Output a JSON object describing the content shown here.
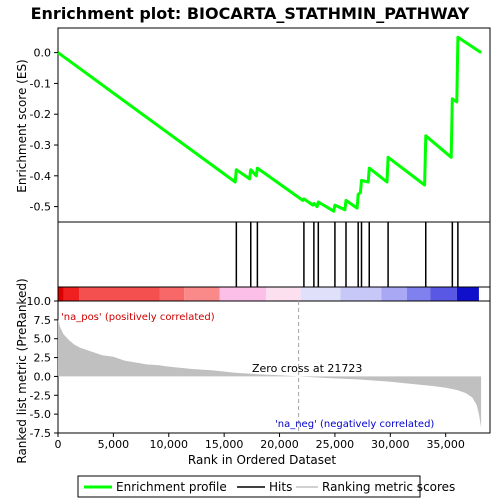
{
  "chart_data": {
    "type": "line",
    "title": "Enrichment plot: BIOCARTA_STATHMIN_PATHWAY",
    "xlabel": "Rank in Ordered Dataset",
    "colors": {
      "es_line": "#00ff00",
      "hits": "#000000",
      "metric_fill": "#c0c0c0",
      "zero_cross_line": "#a0a0a0",
      "pos_label": "#cc0000",
      "neg_label": "#0000cc"
    },
    "panels": {
      "enrichment": {
        "ylabel": "Enrichment score (ES)",
        "ylim": [
          -0.55,
          0.08
        ],
        "yticks": [
          {
            "v": 0.0,
            "label": "0.0"
          },
          {
            "v": -0.1,
            "label": "-0.1"
          },
          {
            "v": -0.2,
            "label": "-0.2"
          },
          {
            "v": -0.3,
            "label": "-0.3"
          },
          {
            "v": -0.4,
            "label": "-0.4"
          },
          {
            "v": -0.5,
            "label": "-0.5"
          }
        ],
        "es_curve": {
          "x": [
            0,
            16000,
            16100,
            17300,
            17400,
            17900,
            18000,
            22100,
            22200,
            23000,
            23100,
            23400,
            23500,
            24900,
            25000,
            25900,
            26000,
            27000,
            27100,
            27300,
            27400,
            28000,
            28100,
            29700,
            29800,
            33100,
            33200,
            35500,
            35600,
            36000,
            36100,
            38200
          ],
          "y": [
            0.0,
            -0.42,
            -0.38,
            -0.41,
            -0.38,
            -0.4,
            -0.375,
            -0.48,
            -0.475,
            -0.495,
            -0.49,
            -0.5,
            -0.485,
            -0.515,
            -0.495,
            -0.51,
            -0.48,
            -0.505,
            -0.46,
            -0.455,
            -0.415,
            -0.42,
            -0.375,
            -0.42,
            -0.34,
            -0.43,
            -0.27,
            -0.34,
            -0.15,
            -0.16,
            0.05,
            0.0
          ]
        }
      },
      "hits": {
        "positions": [
          16100,
          17400,
          18000,
          22200,
          23100,
          23500,
          25000,
          26000,
          27100,
          27400,
          28100,
          29800,
          33200,
          35600,
          36100
        ]
      },
      "ranked_metric": {
        "ylabel": "Ranked list metric (PreRanked)",
        "ylim": [
          -7.5,
          10.0
        ],
        "yticks": [
          {
            "v": 10.0,
            "label": "10.0"
          },
          {
            "v": 7.5,
            "label": "7.5"
          },
          {
            "v": 5.0,
            "label": "5.0"
          },
          {
            "v": 2.5,
            "label": "2.5"
          },
          {
            "v": 0.0,
            "label": "0.0"
          },
          {
            "v": -2.5,
            "label": "-2.5"
          },
          {
            "v": -5.0,
            "label": "-5.0"
          },
          {
            "v": -7.5,
            "label": "-7.5"
          }
        ],
        "curve": {
          "x": [
            0,
            200,
            500,
            1000,
            1500,
            2000,
            3000,
            4000,
            5000,
            6000,
            8000,
            9000,
            10000,
            12000,
            14000,
            16000,
            18000,
            20000,
            21723,
            24000,
            27000,
            30000,
            32000,
            34000,
            35000,
            36000,
            36800,
            37400,
            37800,
            38000,
            38200
          ],
          "y": [
            7.6,
            6.5,
            5.6,
            4.8,
            4.2,
            3.8,
            3.3,
            2.8,
            2.6,
            2.1,
            1.6,
            1.5,
            1.3,
            1.0,
            0.8,
            0.5,
            0.3,
            0.15,
            0.0,
            -0.2,
            -0.4,
            -0.7,
            -1.0,
            -1.3,
            -1.5,
            -1.8,
            -2.2,
            -2.8,
            -3.8,
            -5.0,
            -6.8
          ]
        },
        "zero_cross_label": "Zero cross at 21723",
        "zero_cross_x": 21723,
        "pos_label": "'na_pos' (positively correlated)",
        "neg_label": "'na_neg' (negatively correlated)"
      }
    },
    "x_axis": {
      "xlim": [
        0,
        39000
      ],
      "xticks": [
        {
          "v": 0,
          "label": "0"
        },
        {
          "v": 5000,
          "label": "5,000"
        },
        {
          "v": 10000,
          "label": "10,000"
        },
        {
          "v": 15000,
          "label": "15,000"
        },
        {
          "v": 20000,
          "label": "20,000"
        },
        {
          "v": 25000,
          "label": "25,000"
        },
        {
          "v": 30000,
          "label": "30,000"
        },
        {
          "v": 35000,
          "label": "35,000"
        }
      ]
    },
    "color_bar": {
      "segments": [
        {
          "start": 0,
          "end": 500,
          "color": "#dd0000"
        },
        {
          "start": 500,
          "end": 1900,
          "color": "#f02020"
        },
        {
          "start": 1900,
          "end": 9200,
          "color": "#f55050"
        },
        {
          "start": 9200,
          "end": 11400,
          "color": "#f86868"
        },
        {
          "start": 11400,
          "end": 14600,
          "color": "#fa8a8a"
        },
        {
          "start": 14600,
          "end": 18800,
          "color": "#fcc0e8"
        },
        {
          "start": 18800,
          "end": 21900,
          "color": "#fde0f0"
        },
        {
          "start": 21900,
          "end": 25500,
          "color": "#e0e0fa"
        },
        {
          "start": 25500,
          "end": 29200,
          "color": "#c8c8f8"
        },
        {
          "start": 29200,
          "end": 31500,
          "color": "#a8a8f4"
        },
        {
          "start": 31500,
          "end": 33600,
          "color": "#8080ee"
        },
        {
          "start": 33600,
          "end": 36000,
          "color": "#5858e4"
        },
        {
          "start": 36000,
          "end": 38000,
          "color": "#1010cc"
        }
      ]
    },
    "legend": {
      "items": [
        {
          "label": "Enrichment profile",
          "color": "#00ff00",
          "kind": "thick"
        },
        {
          "label": "Hits",
          "color": "#000000",
          "kind": "thin"
        },
        {
          "label": "Ranking metric scores",
          "color": "#c0c0c0",
          "kind": "thin"
        }
      ]
    }
  }
}
